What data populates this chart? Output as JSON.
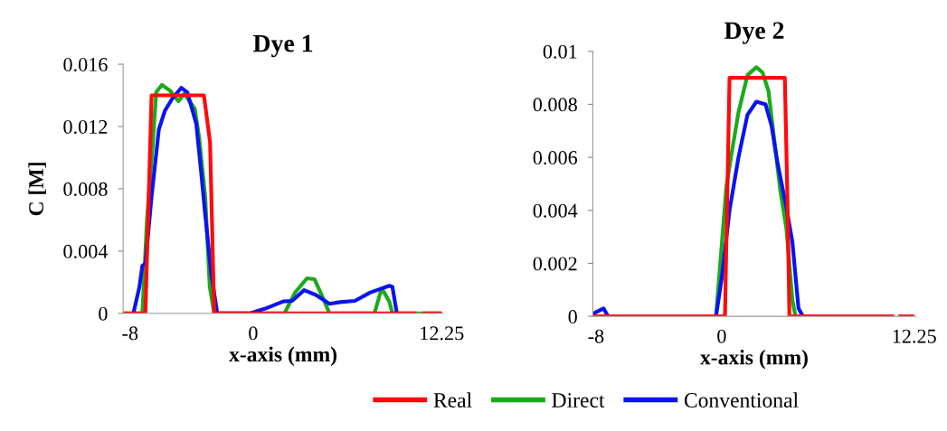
{
  "chart_data": [
    {
      "type": "line",
      "title": "Dye 1",
      "xlabel": "x-axis (mm)",
      "ylabel": "C [M]",
      "xlim": [
        -8.45,
        12.35
      ],
      "xticks": [
        -8,
        0,
        12.25
      ],
      "ylim": [
        0,
        0.016
      ],
      "yticks": [
        0,
        0.004,
        0.008,
        0.012,
        0.016
      ],
      "legend": "bottom",
      "grid": false,
      "marker": "none",
      "line_style": "solid",
      "series": [
        {
          "name": "Real",
          "color": "#ff0a0a",
          "x": [
            -8.45,
            -7.0,
            -6.6,
            -3.2,
            -2.8,
            -2.53,
            10.6,
            10.8,
            11.0,
            12.25
          ],
          "values": [
            0,
            0,
            0.014,
            0.014,
            0.011,
            0,
            0,
            null,
            0,
            0
          ]
        },
        {
          "name": "Direct",
          "color": "#1aab1a",
          "x": [
            -8.45,
            -7.2,
            -6.9,
            -6.5,
            -6.3,
            -5.93,
            -5.4,
            -4.86,
            -4.47,
            -3.79,
            -3.5,
            -3.11,
            -2.82,
            -2.53,
            2.04,
            2.72,
            3.5,
            3.99,
            4.47,
            4.96,
            7.88,
            8.27,
            8.46,
            8.85,
            9.05,
            12.25
          ],
          "values": [
            0,
            0,
            0.006,
            0.0112,
            0.0142,
            0.01467,
            0.0143,
            0.01362,
            0.0141,
            0.01314,
            0.01124,
            0.00743,
            0.0017,
            0,
            0,
            0.00133,
            0.00225,
            0.00219,
            0.00114,
            0,
            0,
            0.00133,
            0.00143,
            0.00076,
            0,
            0
          ]
        },
        {
          "name": "Conventional",
          "color": "#0a14f0",
          "x": [
            -7.78,
            -7.39,
            -7.2,
            -7.0,
            -6.61,
            -6.13,
            -5.74,
            -5.25,
            -4.67,
            -4.28,
            -3.7,
            -3.4,
            -3.11,
            -2.72,
            -2.33,
            -0.19,
            0.78,
            1.95,
            2.53,
            3.31,
            4.09,
            4.96,
            5.64,
            6.61,
            7.59,
            8.85,
            9.05,
            9.34
          ],
          "values": [
            0,
            0.0017,
            0.00305,
            0.0032,
            0.0074,
            0.0118,
            0.013,
            0.0138,
            0.01448,
            0.0142,
            0.0122,
            0.0093,
            0.0063,
            0.0025,
            0,
            0,
            0.0003,
            0.00076,
            0.0008,
            0.00149,
            0.00118,
            0.00061,
            0.00072,
            0.0008,
            0.00133,
            0.00177,
            0.0017,
            0
          ]
        }
      ]
    },
    {
      "type": "line",
      "title": "Dye 2",
      "xlabel": "x-axis (mm)",
      "xlim": [
        -8.2,
        12.35
      ],
      "xticks": [
        -8,
        0,
        12.25
      ],
      "ylim": [
        0,
        0.01
      ],
      "yticks": [
        0,
        0.002,
        0.004,
        0.006,
        0.008,
        0.01
      ],
      "grid": false,
      "marker": "none",
      "line_style": "solid",
      "series": [
        {
          "color": "#ff0a0a",
          "x": [
            -8.18,
            0.21,
            0.5,
            4.02,
            4.2,
            4.31,
            10.98,
            11.1,
            11.24,
            12.25
          ],
          "values": [
            0,
            0,
            0.009,
            0.009,
            0.004,
            0,
            0,
            null,
            0,
            0
          ]
        },
        {
          "color": "#1aab1a",
          "x": [
            -0.36,
            0.3,
            0.59,
            1.07,
            1.64,
            2.21,
            2.6,
            2.98,
            3.36,
            3.74,
            4.12,
            4.5,
            4.7
          ],
          "values": [
            0,
            0.0049,
            0.006,
            0.0077,
            0.0091,
            0.0094,
            0.0092,
            0.0085,
            0.0066,
            0.0047,
            0.0033,
            0.0006,
            0
          ]
        },
        {
          "color": "#0a14f0",
          "x": [
            -8.18,
            -7.52,
            -7.23,
            -0.36,
            0.02,
            0.5,
            1.07,
            1.64,
            2.21,
            2.79,
            3.17,
            3.55,
            4.12,
            4.5,
            4.89,
            5.17
          ],
          "values": [
            0.0001,
            0.0003,
            0,
            0,
            0.0015,
            0.004,
            0.006,
            0.0076,
            0.0081,
            0.008,
            0.0072,
            0.0058,
            0.0041,
            0.0028,
            0.0003,
            0
          ]
        }
      ]
    }
  ]
}
